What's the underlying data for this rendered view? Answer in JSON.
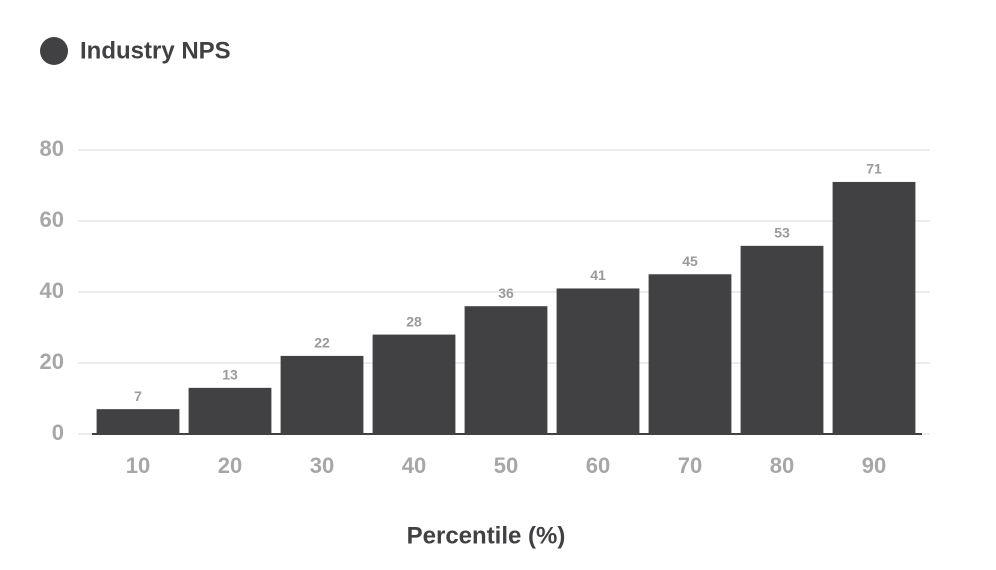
{
  "chart_data": {
    "type": "bar",
    "x_label": "Percentile (%)",
    "categories": [
      "10",
      "20",
      "30",
      "40",
      "50",
      "60",
      "70",
      "80",
      "90"
    ],
    "series": [
      {
        "name": "Industry NPS",
        "color": "#414042",
        "values": [
          7,
          13,
          22,
          28,
          36,
          41,
          45,
          53,
          71
        ]
      }
    ],
    "ylim": [
      0,
      80
    ],
    "yticks": [
      0,
      20,
      40,
      60,
      80
    ],
    "grid": true,
    "legend": "top-left"
  }
}
